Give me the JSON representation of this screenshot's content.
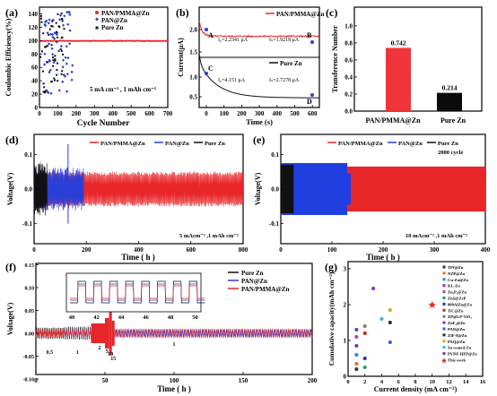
{
  "panels": {
    "a": {
      "letter": "(a)",
      "ylabel": "Coulombic Efficiency(%)",
      "xlabel": "Cycle Number",
      "yticks": [
        "0",
        "20",
        "40",
        "60",
        "80",
        "100",
        "120",
        "140"
      ],
      "xticks": [
        "0",
        "100",
        "200",
        "300",
        "400",
        "500",
        "600",
        "700"
      ],
      "legend": [
        "PAN/PMMA@Zn",
        "PAN@Zn",
        "Pure Zn"
      ],
      "annotation": "5 mA cm⁻² , 1 mAh cm⁻²",
      "colors": {
        "pan_pmma": "#e8262a",
        "pan": "#2b3fd6",
        "pure": "#111111"
      }
    },
    "b": {
      "letter": "(b)",
      "ylabel": "Current(μA)",
      "xlabel": "Time (s)",
      "yticks": [
        "2.0",
        "1.5",
        "1.0",
        "0.5"
      ],
      "xticks": [
        "0",
        "100",
        "200",
        "300",
        "400",
        "500",
        "600"
      ],
      "legend_top": "PAN/PMMA@Zn",
      "legend_bottom": "Pure Zn",
      "point_A": "A",
      "point_B": "B",
      "point_C": "C",
      "point_D": "D",
      "io_top": "I₀=2.2341 μA",
      "iss_top": "Iₛ=1.9218 μA",
      "io_bottom": "I₀=4.151 μA",
      "iss_bottom": "Iₛ=2.7278 μA"
    },
    "c": {
      "letter": "(c)",
      "ylabel": "Transference Number",
      "yticks": [
        "0.0",
        "0.2",
        "0.4",
        "0.6",
        "0.8",
        "1.0"
      ]
    },
    "d": {
      "letter": "(d)",
      "ylabel": "Voltage(V)",
      "xlabel": "Time ( h )",
      "yticks": [
        "0.1",
        "0.0",
        "-0.1"
      ],
      "xticks": [
        "0",
        "200",
        "400",
        "600",
        "800"
      ],
      "legend": [
        "PAN/PMMA@Zn",
        "PAN@Zn",
        "Pure Zn"
      ],
      "annotation": "5 mAcm⁻² ,1 mAh cm⁻²"
    },
    "e": {
      "letter": "(e)",
      "ylabel": "Voltage(V)",
      "xlabel": "Time ( h )",
      "yticks": [
        "0.1",
        "0.0",
        "-0.1"
      ],
      "xticks": [
        "0",
        "100",
        "200",
        "300",
        "400"
      ],
      "legend": [
        "PAN/PMMA@Zn",
        "PAN@Zn",
        "Pure Zn"
      ],
      "annotation_top": "2000 cycle",
      "annotation": "10 mAcm⁻² ,1 mAh cm⁻²"
    },
    "f": {
      "letter": "(f)",
      "ylabel": "Voltage(V)",
      "xlabel": "Time ( h )",
      "yticks": [
        "0.15",
        "0.10",
        "0.05",
        "0.00",
        "-0.05",
        "-0.10",
        "-0.15"
      ],
      "xticks": [
        "0",
        "50",
        "100",
        "150",
        "200"
      ],
      "inset_xticks": [
        "40",
        "42",
        "44",
        "46",
        "48",
        "50"
      ],
      "legend": [
        "Pure Zn",
        "PAN@Zn",
        "PAN/PMMA@Zn"
      ],
      "rate_labels": [
        "0.5",
        "1",
        "2",
        "5",
        "10",
        "15",
        "1"
      ]
    },
    "g": {
      "letter": "(g)",
      "ylabel": "Cumulative capacity(mAh cm⁻²)",
      "xlabel": "Current density (mA cm⁻²)",
      "xticks": [
        "0",
        "2",
        "4",
        "6",
        "8",
        "10",
        "12",
        "14",
        "16"
      ],
      "yticks": [
        "0",
        "1",
        "2",
        "3"
      ],
      "legend": [
        "TiN@Zn",
        "NZP@Zn",
        "Cu-Zn@Zn",
        "KL-Zn",
        "Zn₃P₂@Zn",
        "ZnS@ZrP",
        "800AlZn@Zn",
        "TiC@Zn",
        "ZP@LP-TiO₂",
        "ZnF₂@Zn",
        "PAN@Zn",
        "ZIF-8@Zn",
        "PAQ@Zn",
        "Sn coated-Zn",
        "PVDF-HFP@Zn",
        "This work"
      ]
    }
  },
  "chart_data": [
    {
      "type": "scatter",
      "title": "",
      "xlabel": "Cycle Number",
      "ylabel": "Coulombic Efficiency(%)",
      "xlim": [
        0,
        700
      ],
      "ylim": [
        0,
        150
      ],
      "series": [
        {
          "name": "PAN/PMMA@Zn",
          "note_values": "stable near 99.5% over 700 cycles",
          "x": [
            0,
            100,
            200,
            300,
            400,
            500,
            600,
            700
          ],
          "y": [
            99.5,
            99.6,
            99.6,
            99.6,
            99.7,
            99.7,
            99.7,
            99.7
          ]
        },
        {
          "name": "PAN@Zn",
          "x": [
            20,
            60,
            100,
            120,
            140,
            160,
            175,
            185
          ],
          "y": [
            100,
            95,
            120,
            40,
            130,
            60,
            110,
            100
          ]
        },
        {
          "name": "Pure Zn",
          "x": [
            10,
            30,
            50,
            70,
            90,
            110,
            130
          ],
          "y": [
            100,
            140,
            80,
            120,
            20,
            145,
            100
          ]
        }
      ]
    },
    {
      "type": "line",
      "xlabel": "Time (s)",
      "ylabel": "Current(μA)",
      "xlim": [
        0,
        600
      ],
      "series": [
        {
          "name": "PAN/PMMA@Zn",
          "x": [
            0,
            20,
            100,
            200,
            300,
            400,
            500,
            600
          ],
          "y": [
            2.2341,
            2.05,
            1.98,
            1.95,
            1.94,
            1.93,
            1.93,
            1.9218
          ]
        },
        {
          "name": "Pure Zn",
          "x": [
            0,
            20,
            100,
            200,
            300,
            400,
            500,
            600
          ],
          "y": [
            4.151,
            3.6,
            3.2,
            3.0,
            2.9,
            2.8,
            2.75,
            2.7278
          ]
        }
      ]
    },
    {
      "type": "bar",
      "categories": [
        "PAN/PMMA@Zn",
        "Pure Zn"
      ],
      "values": [
        0.742,
        0.214
      ],
      "ylabel": "Transference Number",
      "ylim": [
        0,
        1.0
      ]
    },
    {
      "type": "line",
      "xlabel": "Time ( h )",
      "ylabel": "Voltage(V)",
      "xlim": [
        0,
        800
      ],
      "ylim": [
        -0.15,
        0.15
      ],
      "series": [
        {
          "name": "PAN/PMMA@Zn",
          "x_end": 800,
          "amplitude": 0.045
        },
        {
          "name": "PAN@Zn",
          "x_end": 190,
          "amplitude": 0.05
        },
        {
          "name": "Pure Zn",
          "x_end": 50,
          "amplitude": 0.05
        }
      ]
    },
    {
      "type": "line",
      "xlabel": "Time ( h )",
      "ylabel": "Voltage(V)",
      "xlim": [
        0,
        400
      ],
      "ylim": [
        -0.15,
        0.15
      ],
      "series": [
        {
          "name": "PAN/PMMA@Zn",
          "x_end": 400,
          "amplitude": 0.065
        },
        {
          "name": "PAN@Zn",
          "x_end": 130,
          "amplitude": 0.075
        },
        {
          "name": "Pure Zn",
          "x_end": 25,
          "amplitude": 0.07
        }
      ]
    },
    {
      "type": "line",
      "xlabel": "Time ( h )",
      "ylabel": "Voltage(V)",
      "xlim": [
        0,
        200
      ],
      "ylim": [
        -0.15,
        0.15
      ],
      "rate_steps": [
        {
          "rate": "0.5",
          "x": [
            0,
            20
          ]
        },
        {
          "rate": "1",
          "x": [
            20,
            40
          ]
        },
        {
          "rate": "2",
          "x": [
            40,
            50
          ]
        },
        {
          "rate": "5",
          "x": [
            50,
            53
          ]
        },
        {
          "rate": "10",
          "x": [
            53,
            55
          ]
        },
        {
          "rate": "15",
          "x": [
            55,
            57
          ]
        },
        {
          "rate": "1",
          "x": [
            57,
            200
          ]
        }
      ]
    },
    {
      "type": "scatter",
      "xlabel": "Current density (mA cm⁻²)",
      "ylabel": "Cumulative capacity(mAh cm⁻²)",
      "xlim": [
        0,
        16
      ],
      "ylim": [
        0,
        3.2
      ],
      "points": [
        {
          "name": "TiN@Zn",
          "x": 1,
          "y": 0.2
        },
        {
          "name": "NZP@Zn",
          "x": 1,
          "y": 0.35
        },
        {
          "name": "Cu-Zn@Zn",
          "x": 1,
          "y": 0.6
        },
        {
          "name": "KL-Zn",
          "x": 1,
          "y": 0.85
        },
        {
          "name": "Zn₃P₂@Zn",
          "x": 1,
          "y": 1.1
        },
        {
          "name": "ZnS@ZrP",
          "x": 2,
          "y": 0.25
        },
        {
          "name": "800AlZn@Zn",
          "x": 2,
          "y": 0.5
        },
        {
          "name": "TiC@Zn",
          "x": 2,
          "y": 1.2
        },
        {
          "name": "ZP@LP-TiO₂",
          "x": 2,
          "y": 1.4
        },
        {
          "name": "ZnF₂@Zn",
          "x": 3,
          "y": 2.45
        },
        {
          "name": "PAN@Zn",
          "x": 5,
          "y": 0.95
        },
        {
          "name": "ZIF-8@Zn",
          "x": 5,
          "y": 1.5
        },
        {
          "name": "PAQ@Zn",
          "x": 5,
          "y": 1.85
        },
        {
          "name": "Sn coated-Zn",
          "x": 4,
          "y": 1.6
        },
        {
          "name": "PVDF-HFP@Zn",
          "x": 1,
          "y": 1.3
        },
        {
          "name": "This work",
          "x": 10,
          "y": 2.0
        }
      ]
    }
  ]
}
